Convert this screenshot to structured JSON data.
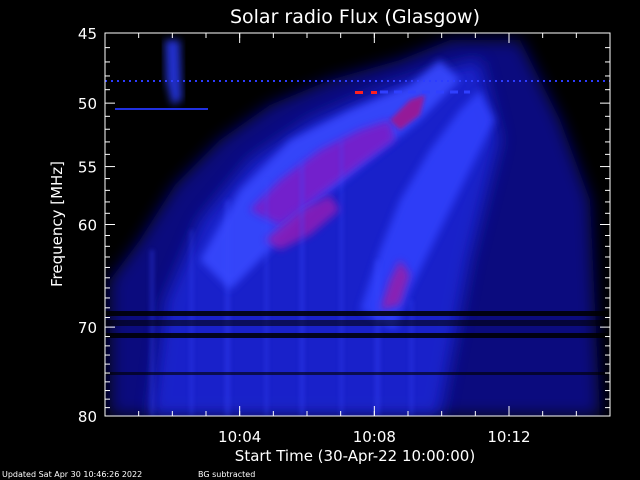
{
  "chart_data": {
    "type": "heatmap",
    "title": "Solar radio Flux (Glasgow)",
    "xlabel": "Start Time (30-Apr-22 10:00:00)",
    "ylabel": "Frequency [MHz]",
    "x_unit": "minutes after 10:00",
    "xlim": [
      0.0,
      15.0
    ],
    "ylim": [
      45,
      80
    ],
    "y_scale": "log",
    "y_inverted": true,
    "x_ticks": [
      {
        "value": 4,
        "label": "10:04"
      },
      {
        "value": 8,
        "label": "10:08"
      },
      {
        "value": 12,
        "label": "10:12"
      }
    ],
    "y_ticks": [
      {
        "value": 45,
        "label": "45"
      },
      {
        "value": 50,
        "label": "50"
      },
      {
        "value": 55,
        "label": "55"
      },
      {
        "value": 60,
        "label": "60"
      },
      {
        "value": 70,
        "label": "70"
      },
      {
        "value": 80,
        "label": "80"
      }
    ],
    "colors": {
      "background": "#000000",
      "low": "#0a0a90",
      "mid": "#2f3cff",
      "high": "#c4006a",
      "peak": "#ff2020"
    }
  },
  "footer": {
    "updated": "Updated Sat Apr 30 10:46:26 2022",
    "note": "BG subtracted"
  }
}
